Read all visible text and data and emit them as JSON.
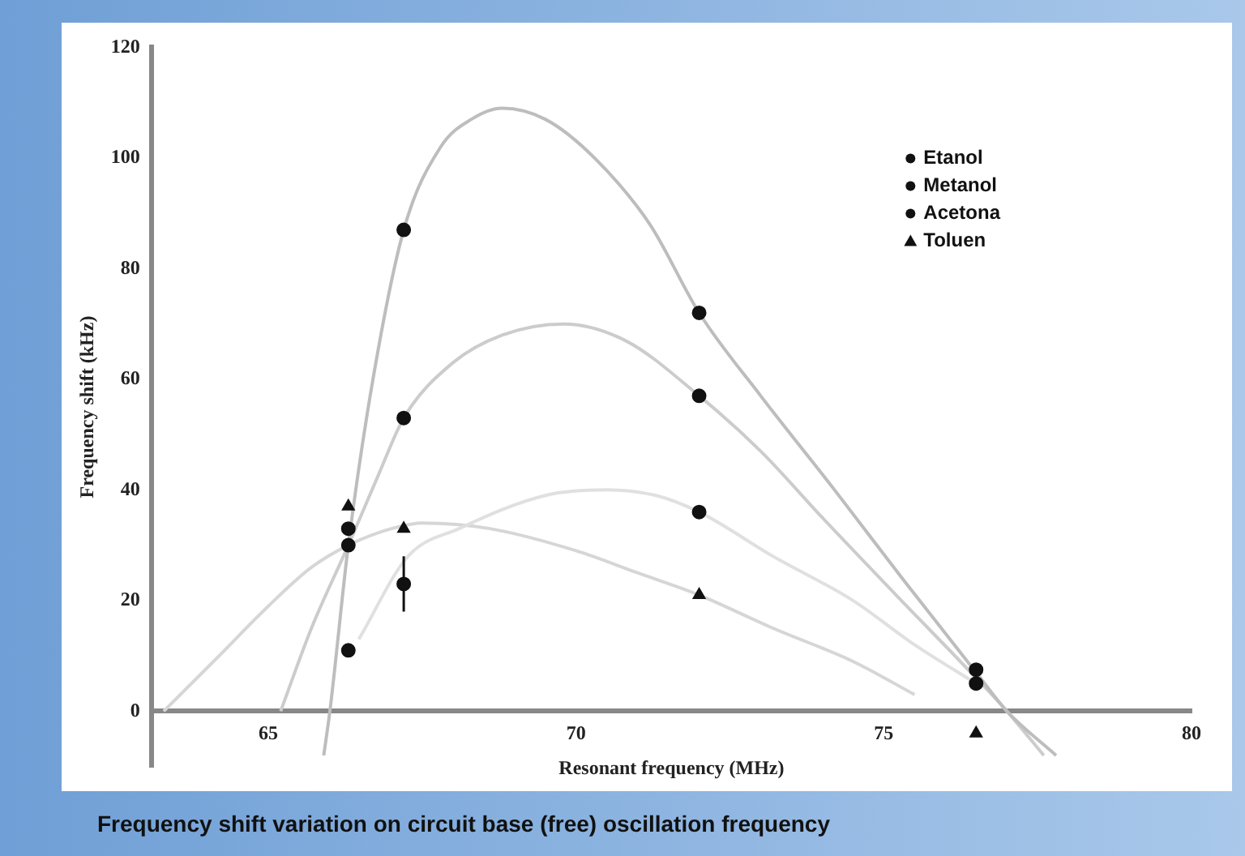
{
  "chart_data": {
    "type": "scatter",
    "title": "Frequency shift variation on circuit base (free) oscillation frequency",
    "xlabel": "Resonant frequency (MHz)",
    "ylabel": "Frequency shift (kHz)",
    "xlim": [
      63.1,
      80
    ],
    "xticks": [
      65,
      70,
      75,
      80
    ],
    "ylim": [
      -10,
      120
    ],
    "yticks": [
      0,
      20,
      40,
      60,
      80,
      100,
      120
    ],
    "grid": false,
    "legend": "top right",
    "series": [
      {
        "name": "Etanol",
        "marker": "circle",
        "color": "#111111",
        "x": [
          66.3,
          67.2,
          72,
          76.5
        ],
        "values": [
          30,
          87,
          72,
          7.5
        ]
      },
      {
        "name": "Metanol",
        "marker": "circle",
        "color": "#111111",
        "x": [
          66.3,
          67.2,
          72,
          76.5
        ],
        "values": [
          33,
          53,
          57,
          5
        ]
      },
      {
        "name": "Acetona",
        "marker": "circle",
        "color": "#111111",
        "x": [
          66.3,
          67.2,
          72
        ],
        "values": [
          11,
          23,
          36
        ],
        "errors": [
          null,
          [
            18,
            28
          ],
          null
        ]
      },
      {
        "name": "Toluen",
        "marker": "triangle",
        "color": "#111111",
        "x": [
          66.3,
          67.2,
          72,
          76.5
        ],
        "values": [
          37,
          33,
          21,
          -4
        ]
      },
      {
        "type": "line",
        "marker": "none",
        "color": "#bdbdbd",
        "x": [
          65.9,
          66.0,
          66.3,
          66.7,
          67.2,
          67.8,
          68.3,
          68.8,
          69.5,
          70.3,
          71.2,
          72,
          73,
          74.2,
          75.3,
          76.5,
          77,
          77.8
        ],
        "values": [
          -8,
          0,
          30,
          60,
          87,
          102,
          107,
          109,
          107,
          100,
          88,
          72,
          57,
          40,
          24,
          7,
          0,
          -8
        ]
      },
      {
        "type": "line",
        "marker": "none",
        "color": "#cccccc",
        "x": [
          65.2,
          65.7,
          66.3,
          66.8,
          67.2,
          68,
          68.8,
          69.8,
          70.8,
          72,
          73,
          74,
          75.2,
          76.5,
          77,
          77.6
        ],
        "values": [
          0,
          15,
          30,
          43,
          53,
          63,
          68,
          70,
          67,
          57,
          47,
          35,
          21,
          6,
          0,
          -8
        ]
      },
      {
        "type": "line",
        "marker": "none",
        "color": "#e0e0e0",
        "x": [
          66.47,
          67.27,
          68.1,
          69.5,
          70.5,
          71.3,
          72,
          73.2,
          74.5,
          75.5,
          76.5
        ],
        "values": [
          13,
          28,
          33,
          39,
          40,
          39,
          36,
          28,
          20,
          12,
          5
        ]
      },
      {
        "type": "line",
        "marker": "none",
        "color": "#d6d6d6",
        "x": [
          63.3,
          64.2,
          65,
          65.7,
          66.3,
          67,
          67.5,
          68.6,
          70,
          71,
          72,
          73.2,
          74.5,
          75.5
        ],
        "values": [
          0,
          10,
          19,
          26,
          30,
          33,
          34,
          33,
          29,
          25,
          21,
          15,
          9,
          3
        ]
      }
    ]
  }
}
